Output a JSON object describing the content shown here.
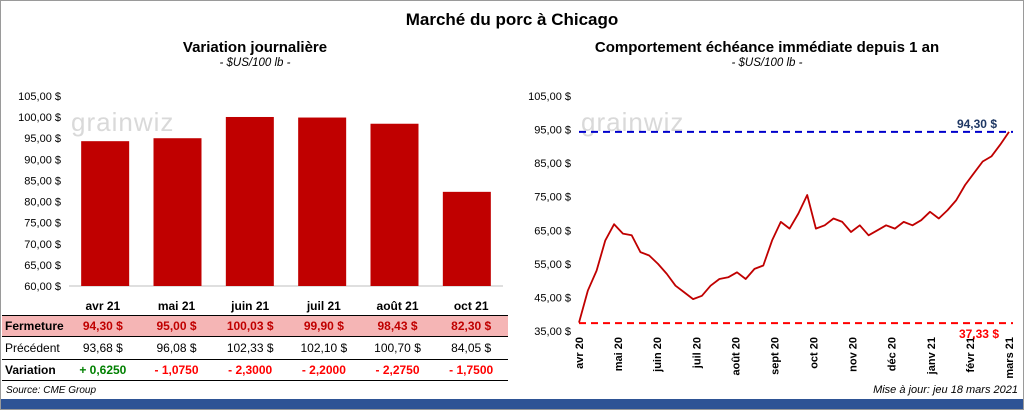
{
  "page": {
    "title": "Marché du porc à Chicago",
    "watermark": "grainwiz",
    "footer": {
      "source": "Source: CME Group",
      "updated": "Mise à jour: jeu 18 mars 2021"
    }
  },
  "colors": {
    "bar": "#C00000",
    "line": "#C00000",
    "ref_high": "#0000CC",
    "ref_high_label": "#1F3864",
    "ref_low": "#FF0000",
    "ref_low_label": "#FF0000",
    "highlight_row_bg": "#F5B5B5",
    "fermeture_text": "#C00000",
    "positive": "#008000",
    "negative": "#FF0000",
    "footer_bar": "#2E5395",
    "axis_line": "#BFBFBF"
  },
  "left": {
    "title": "Variation journalière",
    "subtitle": "- $US/100 lb -",
    "table": {
      "row_labels": [
        "Fermeture",
        "Précédent",
        "Variation"
      ],
      "fermeture": [
        "94,30 $",
        "95,00 $",
        "100,03 $",
        "99,90 $",
        "98,43 $",
        "82,30 $"
      ],
      "precedent": [
        "93,68 $",
        "96,08 $",
        "102,33 $",
        "102,10 $",
        "100,70 $",
        "84,05 $"
      ],
      "variation": [
        "+ 0,6250",
        "- 1,0750",
        "- 2,3000",
        "- 2,2000",
        "- 2,2750",
        "- 1,7500"
      ],
      "variation_signs": [
        "pos",
        "neg",
        "neg",
        "neg",
        "neg",
        "neg"
      ]
    }
  },
  "right": {
    "title": "Comportement échéance immédiate depuis 1 an",
    "subtitle": "- $US/100 lb -",
    "high_label": "94,30 $",
    "low_label": "37,33 $"
  },
  "chart_data": [
    {
      "type": "bar",
      "title": "Variation journalière",
      "subtitle": "- $US/100 lb -",
      "categories": [
        "avr 21",
        "mai 21",
        "juin 21",
        "juil 21",
        "août 21",
        "oct 21"
      ],
      "values": [
        94.3,
        95.0,
        100.03,
        99.9,
        98.43,
        82.3
      ],
      "ylabel": "$US/100 lb",
      "ylim": [
        60,
        105
      ],
      "ytick_step": 5,
      "grid": false,
      "legend": false
    },
    {
      "type": "line",
      "title": "Comportement échéance immédiate depuis 1 an",
      "subtitle": "- $US/100 lb -",
      "x_labels": [
        "avr 20",
        "mai 20",
        "juin 20",
        "juil 20",
        "août 20",
        "sept 20",
        "oct 20",
        "nov 20",
        "déc 20",
        "janv 21",
        "févr 21",
        "mars 21"
      ],
      "series": [
        {
          "name": "échéance immédiate",
          "values": [
            37.5,
            47,
            53,
            62,
            66.8,
            64,
            63.5,
            58.5,
            57.5,
            55,
            52,
            48.5,
            46.5,
            44.5,
            45.5,
            48.5,
            50.5,
            51,
            52.5,
            50.5,
            53.5,
            54.5,
            62,
            67.5,
            65.5,
            70,
            75.5,
            65.5,
            66.5,
            68.5,
            67.5,
            64.5,
            66.5,
            63.5,
            65,
            66.5,
            65.5,
            67.5,
            66.5,
            68,
            70.5,
            68.5,
            71,
            74,
            78.5,
            82,
            85.5,
            87,
            90.5,
            94.3
          ]
        }
      ],
      "ylabel": "$US/100 lb",
      "ylim": [
        35,
        105
      ],
      "ytick_step": 10,
      "grid": false,
      "legend": false,
      "ref_lines": [
        {
          "value": 94.3,
          "label": "94,30 $",
          "color": "#0000CC",
          "style": "dashed",
          "position": "high"
        },
        {
          "value": 37.33,
          "label": "37,33 $",
          "color": "#FF0000",
          "style": "dashed",
          "position": "low"
        }
      ]
    }
  ]
}
